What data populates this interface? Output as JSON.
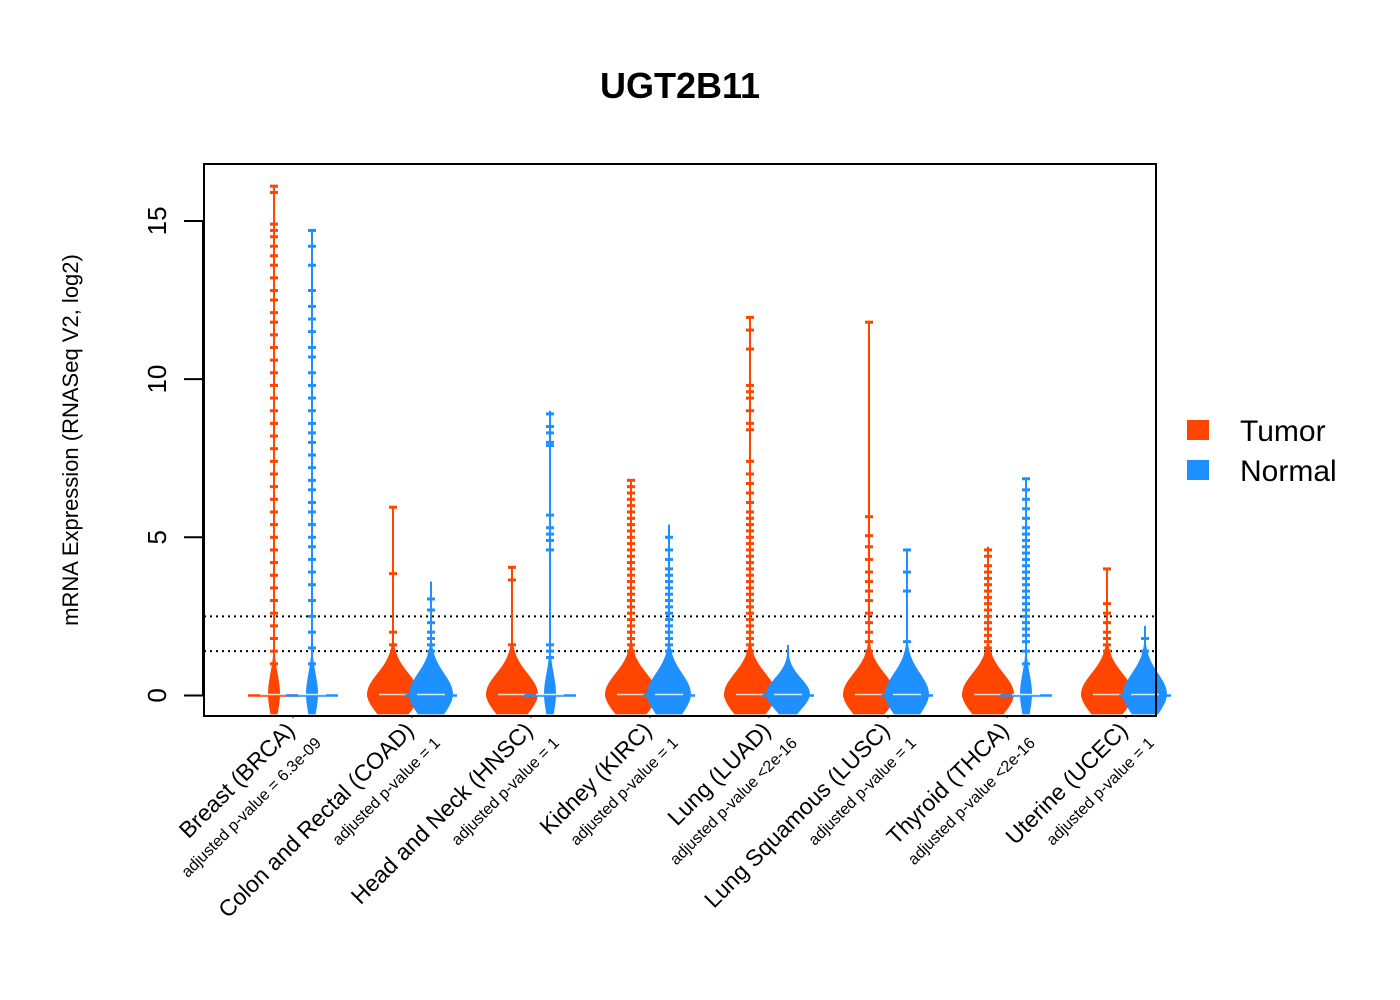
{
  "chart_data": {
    "type": "violin-beeswarm",
    "title": "UGT2B11",
    "ylabel": "mRNA Expression (RNASeq V2, log2)",
    "xlabel": "",
    "ylim": [
      -0.65,
      16.8
    ],
    "yticks": [
      0,
      5,
      10,
      15
    ],
    "reference_lines": [
      2.5,
      1.4
    ],
    "grid": false,
    "legend": {
      "placement": "right",
      "entries": [
        "Tumor",
        "Normal"
      ]
    },
    "colors": {
      "Tumor": "#ff4500",
      "Normal": "#1e90ff"
    },
    "categories": [
      {
        "label": "Breast (BRCA)",
        "pvalue_label": "adjusted p-value = 6.3e-09",
        "tumor": {
          "max": 16.1,
          "outliers": [
            16.1,
            15.9,
            14.9,
            14.7,
            14.5,
            14.2,
            13.9,
            13.6,
            13.2,
            12.8,
            12.5,
            12.1,
            11.8,
            11.4,
            11.0,
            10.6,
            10.2,
            9.8,
            9.4,
            9.0,
            8.6,
            8.2,
            7.8,
            7.4,
            7.0,
            6.6,
            6.2,
            5.8,
            5.4,
            5.0,
            4.6,
            4.2,
            3.8,
            3.4,
            3.0,
            2.6,
            2.2,
            1.8,
            1.4,
            1.0,
            0.6,
            0.3
          ]
        },
        "normal": {
          "max": 14.7,
          "outliers": [
            14.7,
            14.2,
            13.6,
            12.8,
            12.3,
            11.9,
            11.5,
            11.0,
            10.7,
            10.2,
            9.8,
            9.4,
            9.0,
            8.6,
            8.3,
            8.0,
            7.6,
            7.2,
            6.8,
            6.5,
            6.1,
            5.8,
            5.4,
            5.0,
            4.7,
            4.3,
            3.9,
            3.5,
            3.0,
            2.5,
            2.0,
            1.5,
            1.0,
            0.5
          ]
        }
      },
      {
        "label": "Colon and Rectal (COAD)",
        "pvalue_label": "adjusted p-value = 1",
        "tumor": {
          "max": 5.95,
          "outliers": [
            5.95,
            3.85,
            2.0,
            1.6,
            1.2,
            0.9,
            0.7,
            0.5
          ]
        },
        "normal": {
          "max": 3.6,
          "outliers": [
            3.05,
            2.7,
            2.3,
            2.0,
            1.8,
            1.6,
            1.4,
            1.2,
            1.0,
            0.8
          ]
        }
      },
      {
        "label": "Head and Neck (HNSC)",
        "pvalue_label": "adjusted p-value = 1",
        "tumor": {
          "max": 4.05,
          "outliers": [
            4.05,
            3.65,
            1.6,
            0.9,
            0.7
          ]
        },
        "normal": {
          "max": 9.0,
          "outliers": [
            8.9,
            8.5,
            8.3,
            8.0,
            7.9,
            5.7,
            5.3,
            5.1,
            4.9,
            4.6,
            1.6,
            1.4,
            1.2
          ]
        }
      },
      {
        "label": "Kidney (KIRC)",
        "pvalue_label": "adjusted p-value = 1",
        "tumor": {
          "max": 6.8,
          "outliers": [
            6.8,
            6.6,
            6.4,
            6.2,
            6.0,
            5.8,
            5.6,
            5.4,
            5.2,
            5.0,
            4.8,
            4.6,
            4.4,
            4.2,
            4.0,
            3.8,
            3.6,
            3.4,
            3.2,
            3.0,
            2.8,
            2.6,
            2.4,
            2.2,
            2.0,
            1.8,
            1.6,
            1.4,
            1.2,
            1.0,
            0.8,
            0.6,
            0.4,
            0.2
          ]
        },
        "normal": {
          "max": 5.4,
          "outliers": [
            5.0,
            4.6,
            4.3,
            4.0,
            3.8,
            3.6,
            3.4,
            3.2,
            3.0,
            2.8,
            2.6,
            2.4,
            2.2,
            2.0,
            1.8,
            1.6,
            1.4,
            1.2,
            1.0,
            0.8,
            0.6,
            0.4
          ]
        }
      },
      {
        "label": "Lung (LUAD)",
        "pvalue_label": "adjusted p-value <2e-16",
        "tumor": {
          "max": 12.0,
          "outliers": [
            11.95,
            11.55,
            10.95,
            9.8,
            9.6,
            9.4,
            9.0,
            8.6,
            8.4,
            7.4,
            7.0,
            6.7,
            6.4,
            6.1,
            5.8,
            5.6,
            5.4,
            5.2,
            5.0,
            4.8,
            4.6,
            4.4,
            4.2,
            4.0,
            3.8,
            3.6,
            3.4,
            3.2,
            3.0,
            2.8,
            2.6,
            2.4,
            2.2,
            2.0,
            1.8,
            1.6,
            1.4,
            1.2,
            1.0,
            0.8
          ]
        },
        "normal": {
          "max": 1.6,
          "outliers": []
        }
      },
      {
        "label": "Lung Squamous (LUSC)",
        "pvalue_label": "adjusted p-value = 1",
        "tumor": {
          "max": 11.8,
          "outliers": [
            11.8,
            5.65,
            5.05,
            4.7,
            4.3,
            3.9,
            3.6,
            3.3,
            3.0,
            2.6,
            2.3,
            2.0,
            1.7,
            1.4,
            1.1,
            0.9,
            0.7
          ]
        },
        "normal": {
          "max": 4.6,
          "outliers": [
            4.6,
            3.9,
            3.3,
            1.7
          ]
        }
      },
      {
        "label": "Thyroid (THCA)",
        "pvalue_label": "adjusted p-value <2e-16",
        "tumor": {
          "max": 4.7,
          "outliers": [
            4.6,
            4.4,
            4.1,
            3.9,
            3.7,
            3.5,
            3.3,
            3.1,
            2.9,
            2.7,
            2.5,
            2.3,
            2.1,
            1.9,
            1.7,
            1.5,
            1.3,
            1.1,
            0.9,
            0.7,
            0.5
          ]
        },
        "normal": {
          "max": 6.85,
          "outliers": [
            6.85,
            6.5,
            6.2,
            5.9,
            5.6,
            5.3,
            5.1,
            4.9,
            4.7,
            4.5,
            4.3,
            4.1,
            3.9,
            3.7,
            3.5,
            3.3,
            3.1,
            2.9,
            2.7,
            2.5,
            2.3,
            2.1,
            1.9,
            1.7,
            1.4,
            1.0,
            0.6,
            0.0
          ]
        }
      },
      {
        "label": "Uterine (UCEC)",
        "pvalue_label": "adjusted p-value = 1",
        "tumor": {
          "max": 4.0,
          "outliers": [
            4.0,
            2.9,
            2.6,
            2.3,
            2.0,
            1.8,
            1.6,
            1.4,
            1.2,
            1.0,
            0.8,
            0.6,
            0.4
          ]
        },
        "normal": {
          "max": 2.2,
          "outliers": [
            1.8,
            1.4,
            1.1,
            0.8
          ]
        }
      }
    ]
  }
}
